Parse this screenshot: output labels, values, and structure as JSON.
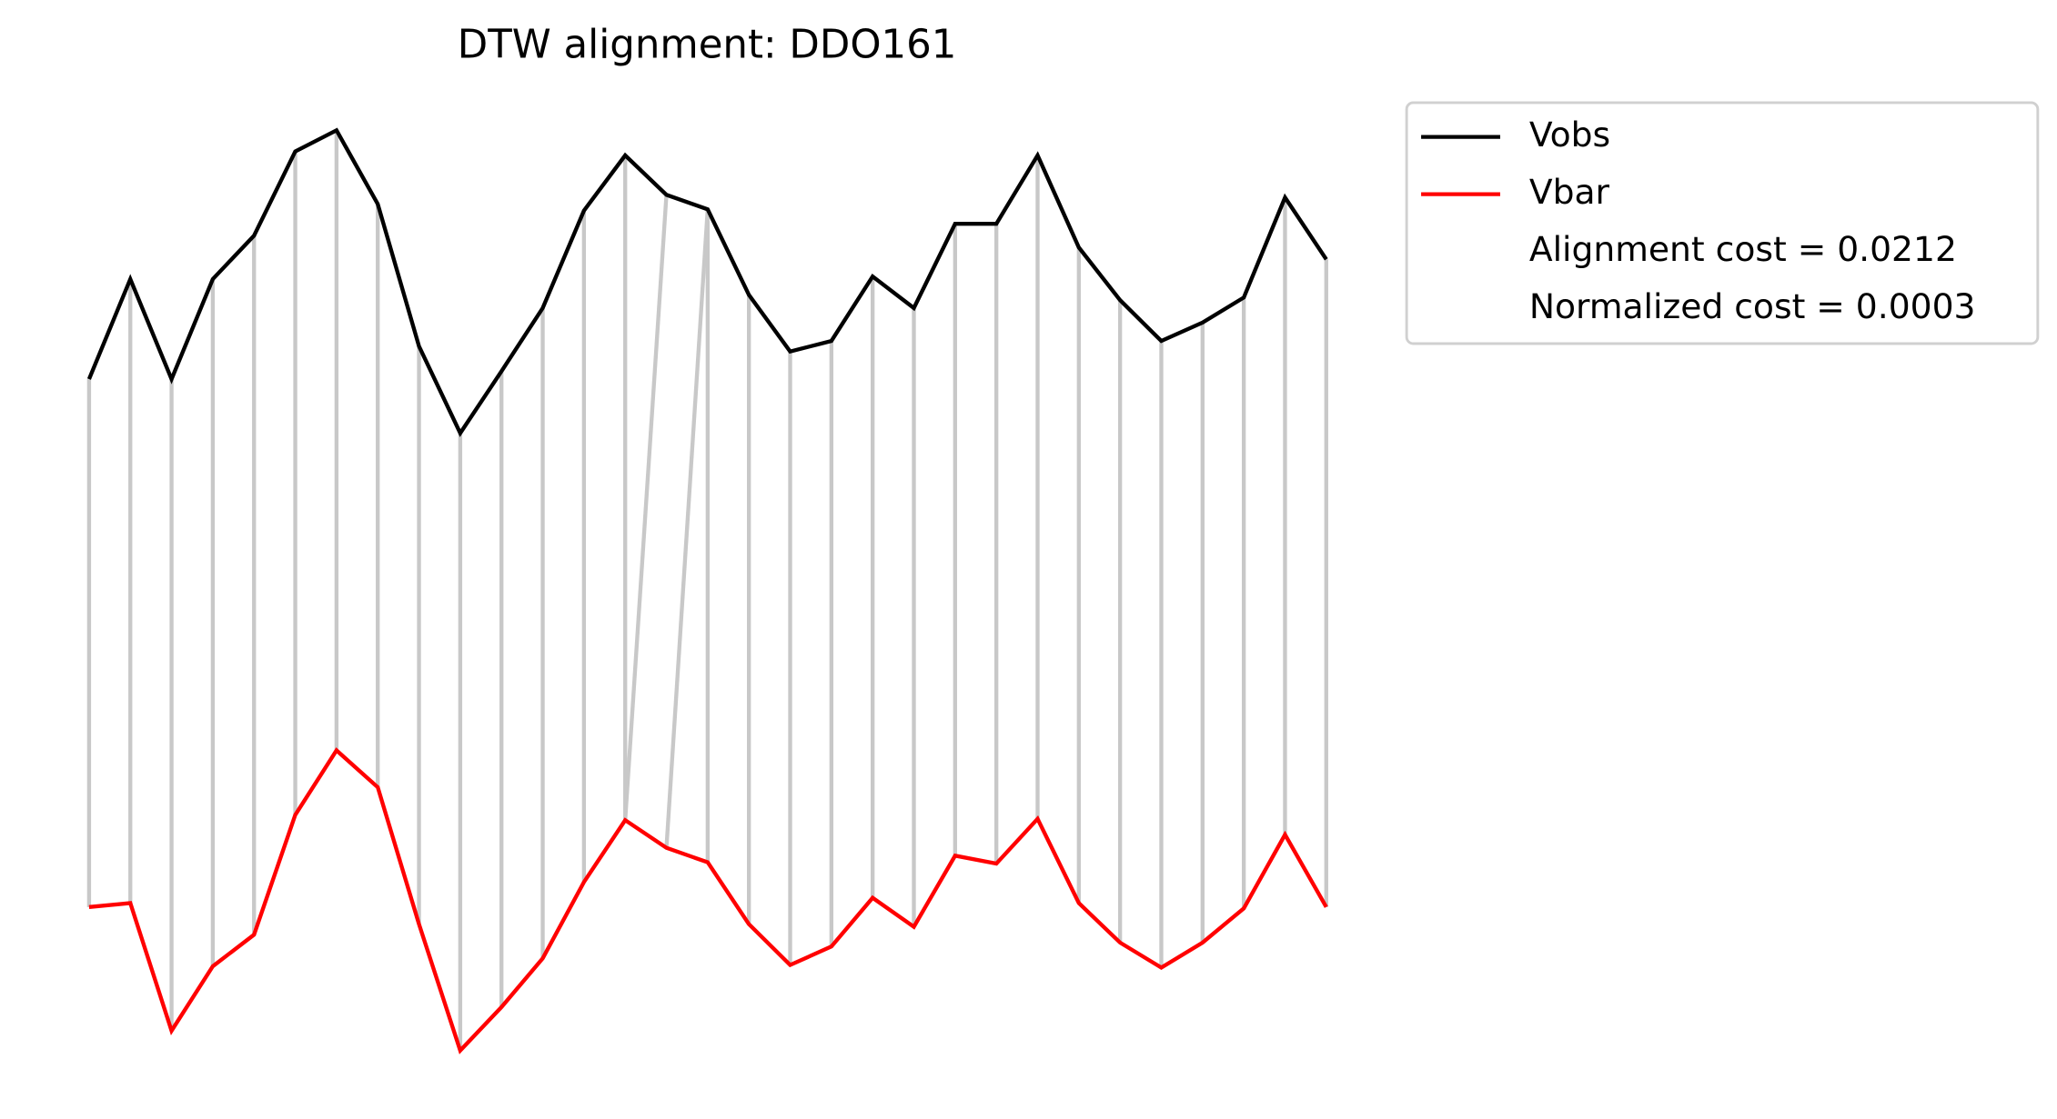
{
  "chart_data": {
    "type": "line",
    "title": "DTW alignment: DDO161",
    "x": [
      0,
      1,
      2,
      3,
      4,
      5,
      6,
      7,
      8,
      9,
      10,
      11,
      12,
      13,
      14,
      15,
      16,
      17,
      18,
      19,
      20,
      21,
      22,
      23,
      24,
      25,
      26,
      27,
      28,
      29,
      30
    ],
    "xlim": [
      0,
      30
    ],
    "ylim": [
      0,
      850
    ],
    "series": [
      {
        "name": "Vobs",
        "color": "#000000",
        "values": [
          562,
          638,
          562,
          638,
          671,
          735,
          751,
          695,
          587,
          521,
          568,
          616,
          690,
          732,
          702,
          691,
          626,
          583,
          591,
          640,
          616,
          680,
          680,
          732,
          662,
          622,
          591,
          605,
          624,
          700,
          653
        ]
      },
      {
        "name": "Vbar",
        "color": "#ff0000",
        "values": [
          161,
          164,
          67,
          116,
          140,
          231,
          280,
          252,
          148,
          52,
          85,
          122,
          180,
          227,
          206,
          195,
          148,
          117,
          131,
          168,
          146,
          200,
          194,
          228,
          164,
          134,
          115,
          134,
          160,
          216,
          161
        ]
      }
    ],
    "alignment": [
      [
        0,
        0
      ],
      [
        1,
        1
      ],
      [
        2,
        2
      ],
      [
        3,
        3
      ],
      [
        4,
        4
      ],
      [
        5,
        5
      ],
      [
        6,
        6
      ],
      [
        7,
        7
      ],
      [
        8,
        8
      ],
      [
        9,
        9
      ],
      [
        10,
        10
      ],
      [
        11,
        11
      ],
      [
        12,
        12
      ],
      [
        13,
        13
      ],
      [
        14,
        13
      ],
      [
        15,
        14
      ],
      [
        15,
        15
      ],
      [
        16,
        16
      ],
      [
        17,
        17
      ],
      [
        18,
        18
      ],
      [
        19,
        19
      ],
      [
        20,
        20
      ],
      [
        21,
        21
      ],
      [
        22,
        22
      ],
      [
        23,
        23
      ],
      [
        24,
        24
      ],
      [
        25,
        25
      ],
      [
        26,
        26
      ],
      [
        27,
        27
      ],
      [
        28,
        28
      ],
      [
        29,
        29
      ],
      [
        30,
        30
      ]
    ],
    "link_color": "#c8c8c8",
    "legend_texts": [
      "Alignment cost = 0.0212",
      "Normalized cost = 0.0003"
    ],
    "legend_position": "outside upper right"
  }
}
